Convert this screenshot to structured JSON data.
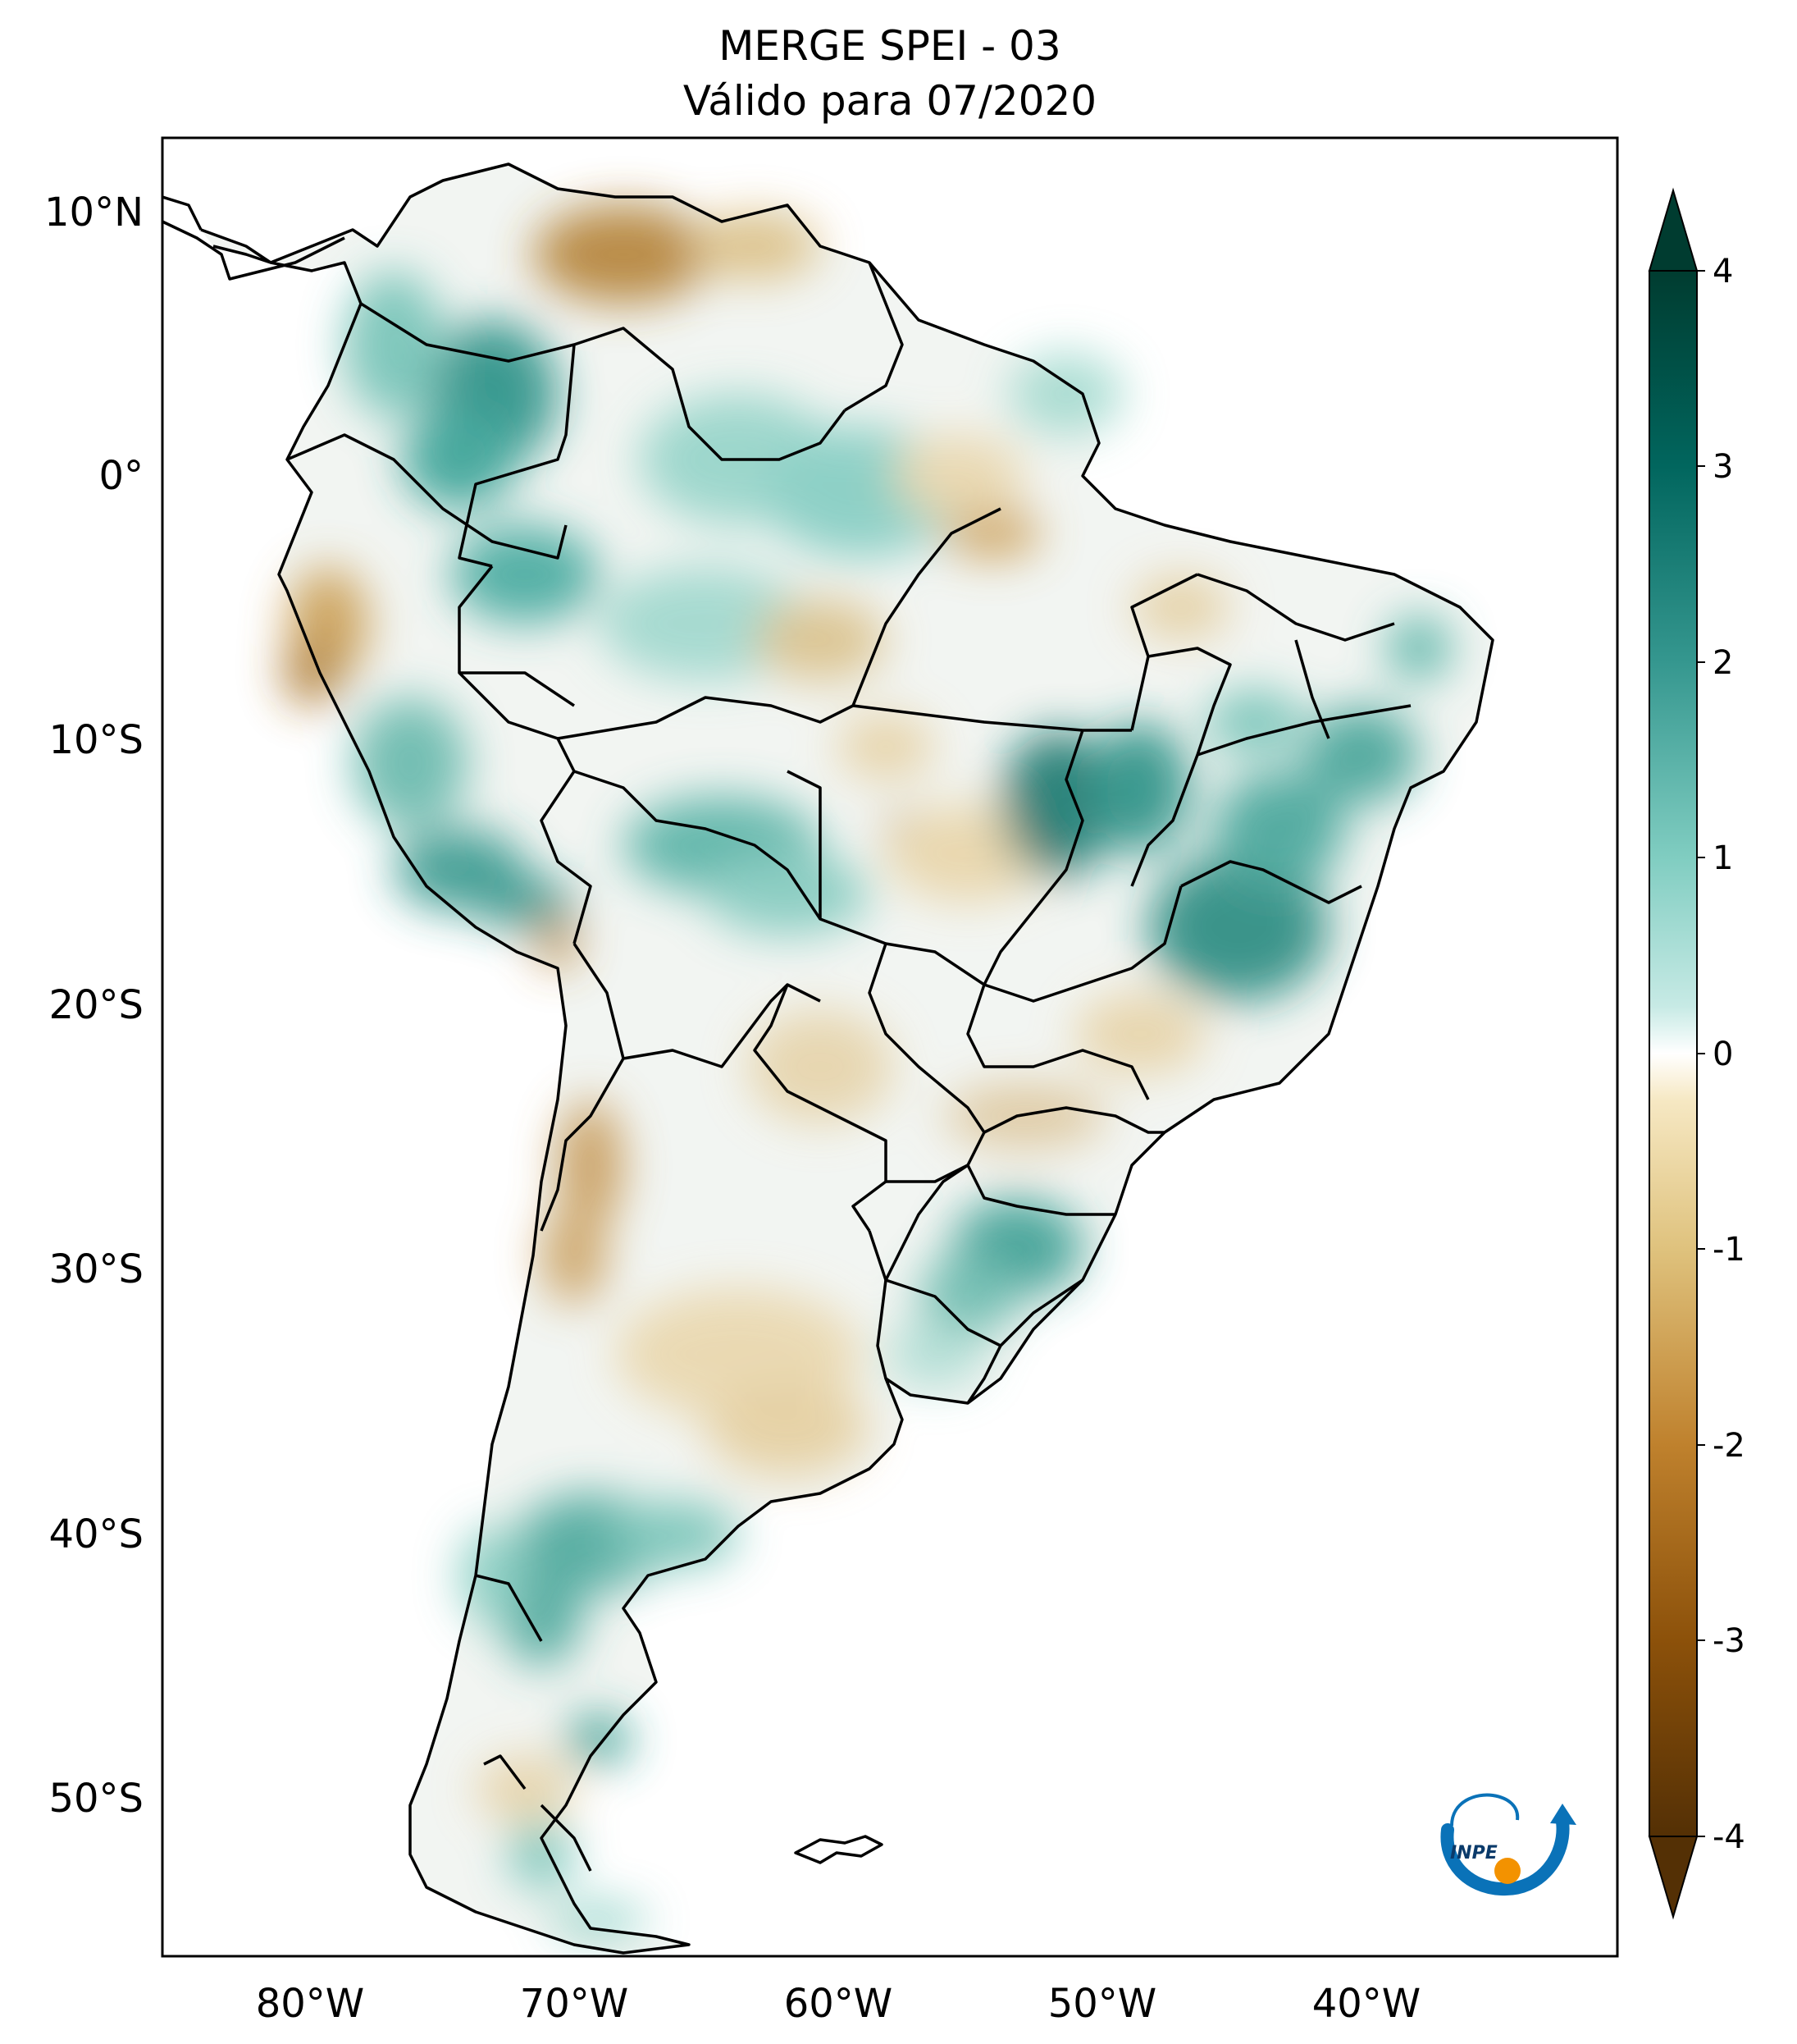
{
  "title": {
    "line1": "MERGE   SPEI - 03",
    "line2": "Válido para 07/2020"
  },
  "axes": {
    "lat_ticks": [
      "10°N",
      "0°",
      "10°S",
      "20°S",
      "30°S",
      "40°S",
      "50°S"
    ],
    "lon_ticks": [
      "80°W",
      "70°W",
      "60°W",
      "50°W",
      "40°W"
    ]
  },
  "colorbar": {
    "ticks": [
      "4",
      "3",
      "2",
      "1",
      "0",
      "-1",
      "-2",
      "-3",
      "-4"
    ],
    "range": [
      -4,
      4
    ],
    "colormap": "BrBG",
    "low_color": "#543005",
    "mid_color": "#f5f5f5",
    "high_color": "#003c30"
  },
  "logo": {
    "text": "INPE",
    "colors": [
      "#0a72b8",
      "#f39200"
    ]
  }
}
